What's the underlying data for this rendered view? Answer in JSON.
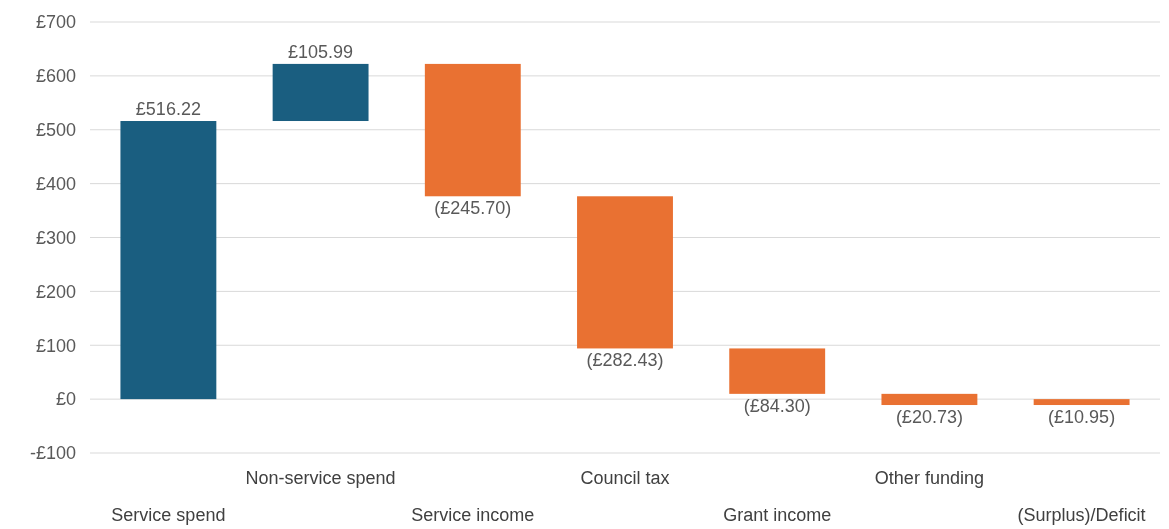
{
  "chart_data": {
    "type": "bar",
    "categories": [
      "Service spend",
      "Non-service spend",
      "Service income",
      "Council tax",
      "Grant income",
      "Other funding",
      "(Surplus)/Deficit"
    ],
    "values": [
      516.22,
      105.99,
      -245.7,
      -282.43,
      -84.3,
      -20.73,
      -10.95
    ],
    "base": [
      0,
      516.22,
      622.21,
      376.51,
      94.08,
      9.78,
      0
    ],
    "colors": [
      "#1a5e80",
      "#1a5e80",
      "#e97132",
      "#e97132",
      "#e97132",
      "#e97132",
      "#e97132"
    ],
    "value_labels": [
      "£516.22",
      "£105.99",
      "(£245.70)",
      "(£282.43)",
      "(£84.30)",
      "(£20.73)",
      "(£10.95)"
    ],
    "ylim": [
      -100,
      700
    ],
    "yticks": [
      {
        "value": -100,
        "label": "-£100"
      },
      {
        "value": 0,
        "label": "£0"
      },
      {
        "value": 100,
        "label": "£100"
      },
      {
        "value": 200,
        "label": "£200"
      },
      {
        "value": 300,
        "label": "£300"
      },
      {
        "value": 400,
        "label": "£400"
      },
      {
        "value": 500,
        "label": "£500"
      },
      {
        "value": 600,
        "label": "£600"
      },
      {
        "value": 700,
        "label": "£700"
      }
    ],
    "grid": "y"
  }
}
